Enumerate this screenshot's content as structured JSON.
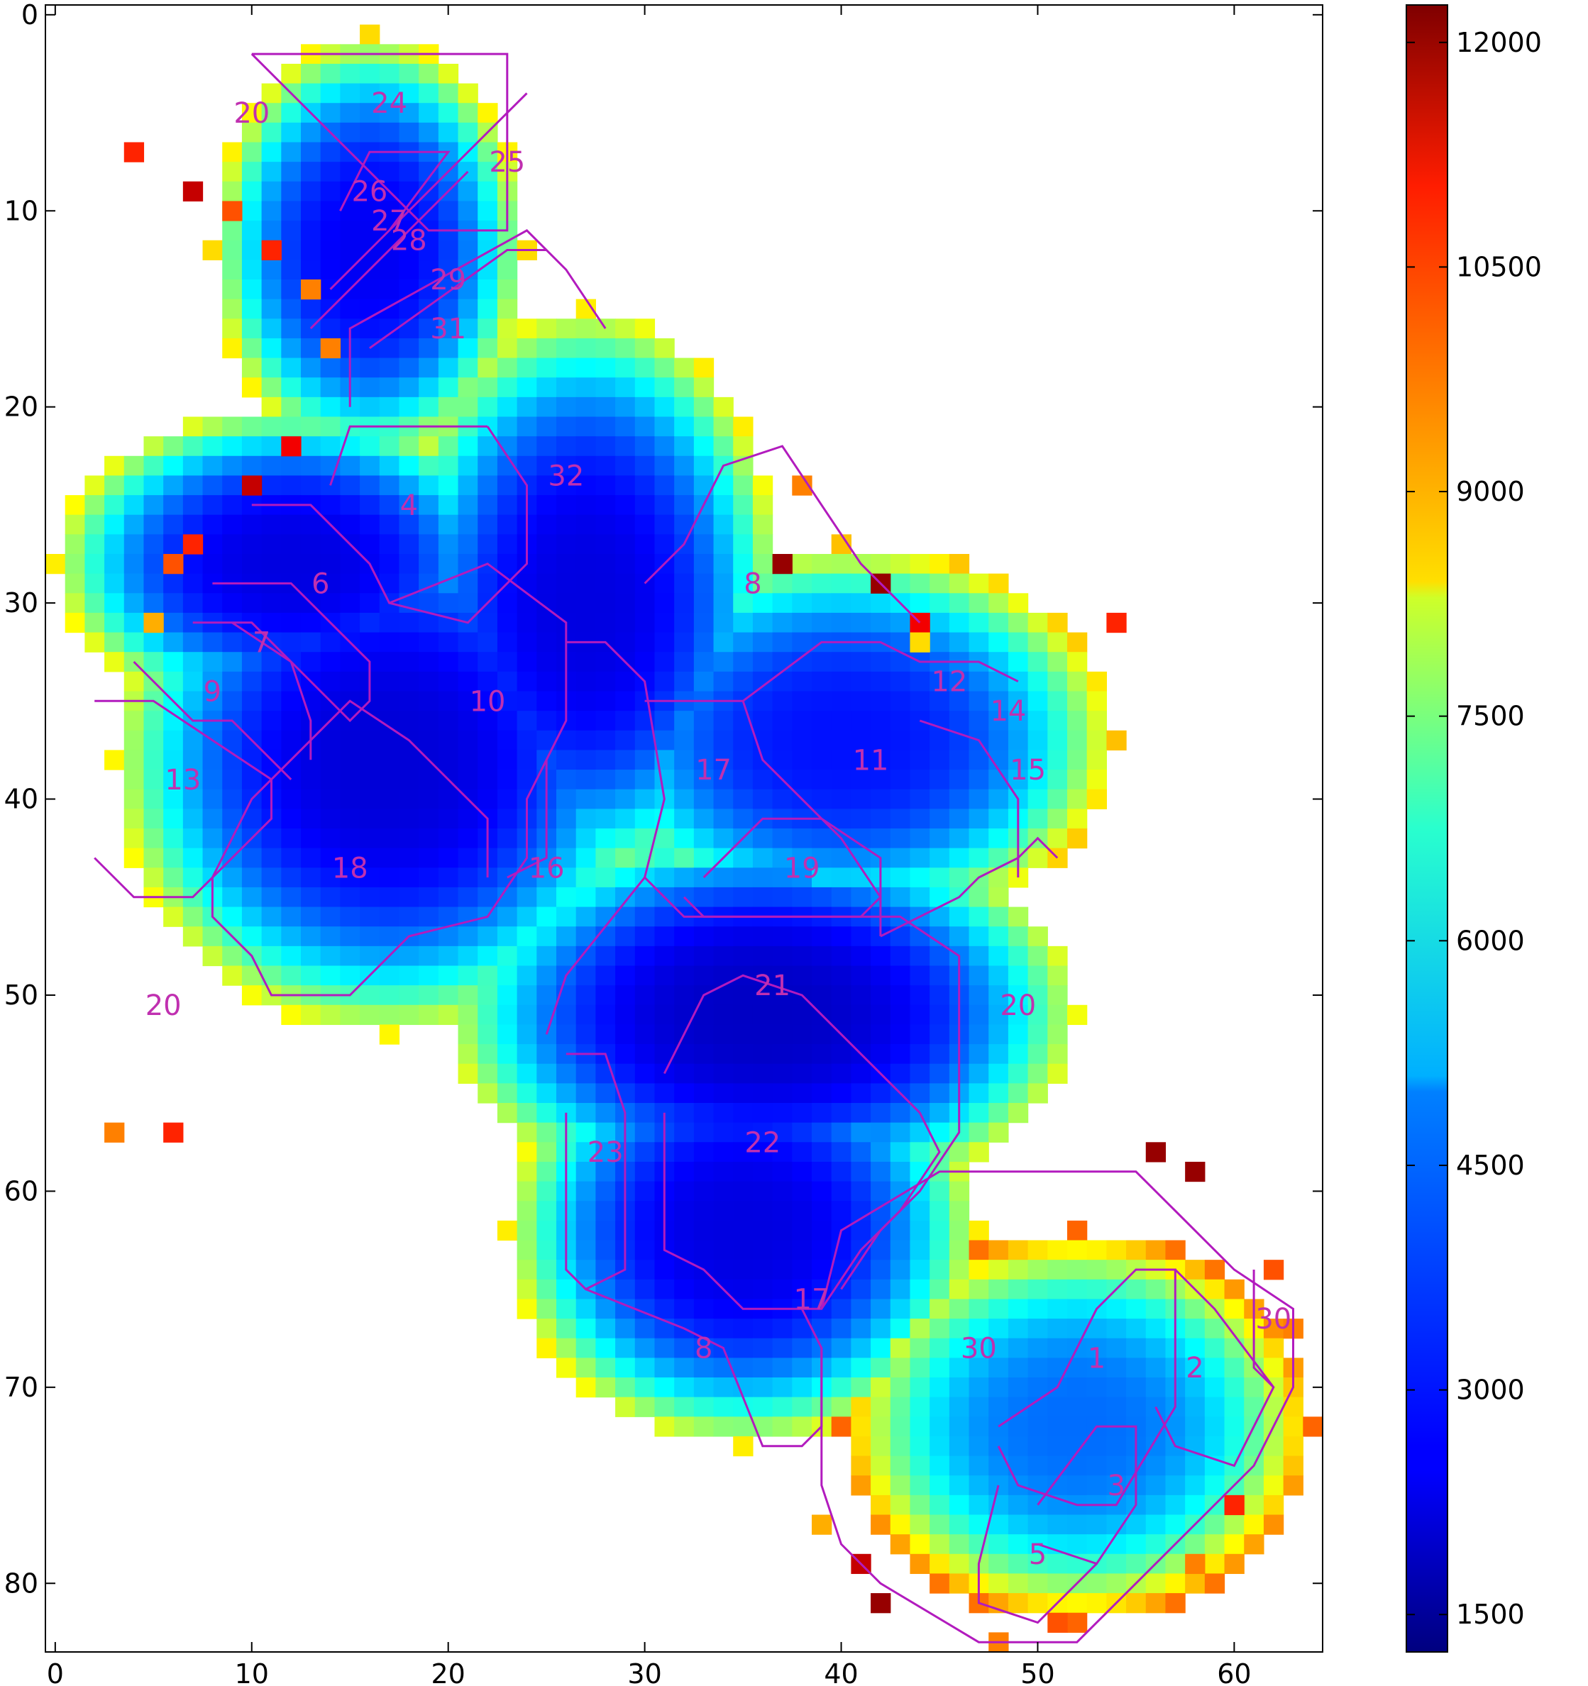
{
  "chart_data": {
    "type": "heatmap",
    "title": "",
    "xlabel": "",
    "ylabel": "",
    "xlim": [
      -0.5,
      64.5
    ],
    "ylim": [
      83.5,
      -0.5
    ],
    "x_ticks": [
      0,
      10,
      20,
      30,
      40,
      50,
      60
    ],
    "y_ticks": [
      0,
      10,
      20,
      30,
      40,
      50,
      60,
      70,
      80
    ],
    "colormap": "jet",
    "colorbar": {
      "min": 1250,
      "max": 12250,
      "ticks": [
        1500,
        3000,
        4500,
        6000,
        7500,
        9000,
        10500,
        12000
      ]
    },
    "grid": false,
    "outline_color": "#b21bbe",
    "label_color": "#c030b0",
    "mask_blobs": [
      {
        "cx": 16,
        "cy": 12,
        "rx": 8,
        "ry": 11,
        "value": 2500
      },
      {
        "cx": 12,
        "cy": 28,
        "rx": 12,
        "ry": 8,
        "value": 2300
      },
      {
        "cx": 17,
        "cy": 38,
        "rx": 14,
        "ry": 14,
        "value": 2200
      },
      {
        "cx": 27,
        "cy": 30,
        "rx": 10,
        "ry": 15,
        "value": 2300
      },
      {
        "cx": 40,
        "cy": 37,
        "rx": 14,
        "ry": 10,
        "value": 2800
      },
      {
        "cx": 36,
        "cy": 51,
        "rx": 16,
        "ry": 10,
        "value": 2000
      },
      {
        "cx": 35,
        "cy": 62,
        "rx": 12,
        "ry": 11,
        "value": 2300
      },
      {
        "cx": 52,
        "cy": 72,
        "rx": 12,
        "ry": 10,
        "value": 3800
      }
    ],
    "edge_points": [
      [
        4,
        7,
        10500
      ],
      [
        7,
        9,
        11500
      ],
      [
        9,
        10,
        10000
      ],
      [
        11,
        12,
        10500
      ],
      [
        13,
        14,
        9500
      ],
      [
        14,
        17,
        9500
      ],
      [
        12,
        22,
        11000
      ],
      [
        10,
        24,
        11500
      ],
      [
        7,
        27,
        10500
      ],
      [
        6,
        28,
        10000
      ],
      [
        5,
        31,
        9000
      ],
      [
        3,
        57,
        9500
      ],
      [
        6,
        57,
        10500
      ],
      [
        37,
        28,
        12000
      ],
      [
        42,
        29,
        12000
      ],
      [
        44,
        31,
        11000
      ],
      [
        54,
        31,
        10500
      ],
      [
        56,
        58,
        12000
      ],
      [
        58,
        59,
        12000
      ],
      [
        62,
        64,
        10000
      ],
      [
        63,
        67,
        9500
      ],
      [
        60,
        76,
        10500
      ],
      [
        58,
        79,
        9500
      ],
      [
        42,
        81,
        12000
      ],
      [
        41,
        79,
        11500
      ],
      [
        48,
        83,
        9500
      ],
      [
        51,
        82,
        10000
      ],
      [
        39,
        77,
        9000
      ],
      [
        44,
        32,
        8500
      ],
      [
        38,
        24,
        9500
      ]
    ],
    "cells_positions_note": "",
    "regions": [
      {
        "label": "20",
        "x": 10,
        "y": 5
      },
      {
        "label": "24",
        "x": 17,
        "y": 4.5
      },
      {
        "label": "25",
        "x": 23,
        "y": 7.5
      },
      {
        "label": "26",
        "x": 16,
        "y": 9
      },
      {
        "label": "27",
        "x": 17,
        "y": 10.5
      },
      {
        "label": "28",
        "x": 18,
        "y": 11.5
      },
      {
        "label": "29",
        "x": 20,
        "y": 13.5
      },
      {
        "label": "31",
        "x": 20,
        "y": 16
      },
      {
        "label": "32",
        "x": 26,
        "y": 23.5
      },
      {
        "label": "4",
        "x": 18,
        "y": 25
      },
      {
        "label": "6",
        "x": 13.5,
        "y": 29
      },
      {
        "label": "7",
        "x": 10.5,
        "y": 32
      },
      {
        "label": "8",
        "x": 35.5,
        "y": 29
      },
      {
        "label": "9",
        "x": 8,
        "y": 34.5
      },
      {
        "label": "10",
        "x": 22,
        "y": 35
      },
      {
        "label": "12",
        "x": 45.5,
        "y": 34
      },
      {
        "label": "14",
        "x": 48.5,
        "y": 35.5
      },
      {
        "label": "13",
        "x": 6.5,
        "y": 39
      },
      {
        "label": "17",
        "x": 33.5,
        "y": 38.5
      },
      {
        "label": "11",
        "x": 41.5,
        "y": 38
      },
      {
        "label": "15",
        "x": 49.5,
        "y": 38.5
      },
      {
        "label": "18",
        "x": 15,
        "y": 43.5
      },
      {
        "label": "16",
        "x": 25,
        "y": 43.5
      },
      {
        "label": "19",
        "x": 38,
        "y": 43.5
      },
      {
        "label": "21",
        "x": 36.5,
        "y": 49.5
      },
      {
        "label": "20",
        "x": 5.5,
        "y": 50.5
      },
      {
        "label": "20",
        "x": 49,
        "y": 50.5
      },
      {
        "label": "22",
        "x": 36,
        "y": 57.5
      },
      {
        "label": "23",
        "x": 28,
        "y": 58
      },
      {
        "label": "17",
        "x": 38.5,
        "y": 65.5
      },
      {
        "label": "8",
        "x": 33,
        "y": 68
      },
      {
        "label": "30",
        "x": 47,
        "y": 68
      },
      {
        "label": "1",
        "x": 53,
        "y": 68.5
      },
      {
        "label": "2",
        "x": 58,
        "y": 69
      },
      {
        "label": "30",
        "x": 62,
        "y": 66.5
      },
      {
        "label": "3",
        "x": 54,
        "y": 75
      },
      {
        "label": "5",
        "x": 50,
        "y": 78.5
      }
    ],
    "boundaries": [
      [
        [
          10,
          2
        ],
        [
          23,
          2
        ],
        [
          23,
          11
        ],
        [
          19,
          11
        ],
        [
          10,
          2
        ]
      ],
      [
        [
          24,
          4
        ],
        [
          16,
          12
        ],
        [
          14,
          14
        ]
      ],
      [
        [
          14.5,
          10
        ],
        [
          16,
          7
        ],
        [
          20,
          7
        ],
        [
          17,
          11
        ]
      ],
      [
        [
          13,
          16
        ],
        [
          21,
          8
        ]
      ],
      [
        [
          15,
          20
        ],
        [
          15,
          16
        ],
        [
          24,
          11
        ],
        [
          26,
          13
        ],
        [
          28,
          16
        ]
      ],
      [
        [
          16,
          17
        ],
        [
          23,
          12
        ],
        [
          25,
          12
        ]
      ],
      [
        [
          22,
          21
        ],
        [
          24,
          24
        ],
        [
          24,
          28
        ],
        [
          21,
          31
        ],
        [
          17,
          30
        ],
        [
          16,
          28
        ],
        [
          13,
          25
        ],
        [
          10,
          25
        ]
      ],
      [
        [
          14,
          24
        ],
        [
          15,
          21
        ],
        [
          22,
          21
        ]
      ],
      [
        [
          8,
          29
        ],
        [
          12,
          29
        ],
        [
          16,
          33
        ],
        [
          16,
          35
        ],
        [
          15,
          36
        ],
        [
          12,
          33
        ],
        [
          9,
          31
        ]
      ],
      [
        [
          7,
          31
        ],
        [
          10,
          31
        ],
        [
          12,
          33
        ],
        [
          13,
          36
        ],
        [
          13,
          38
        ]
      ],
      [
        [
          4,
          33
        ],
        [
          7,
          36
        ],
        [
          9,
          36
        ],
        [
          12,
          39
        ]
      ],
      [
        [
          2,
          35
        ],
        [
          5,
          35
        ],
        [
          8,
          37
        ],
        [
          11,
          39
        ],
        [
          11,
          41
        ],
        [
          7,
          45
        ],
        [
          4,
          45
        ],
        [
          2,
          43
        ]
      ],
      [
        [
          17,
          30
        ],
        [
          22,
          28
        ],
        [
          26,
          31
        ],
        [
          26,
          36
        ],
        [
          24,
          40
        ],
        [
          24,
          43
        ],
        [
          22,
          46
        ],
        [
          18,
          47
        ],
        [
          15,
          50
        ],
        [
          11,
          50
        ],
        [
          10,
          48
        ],
        [
          8,
          46
        ],
        [
          8,
          44
        ],
        [
          10,
          40
        ],
        [
          15,
          35
        ],
        [
          18,
          37
        ],
        [
          22,
          41
        ],
        [
          22,
          44
        ]
      ],
      [
        [
          26,
          32
        ],
        [
          28,
          32
        ],
        [
          30,
          34
        ],
        [
          31,
          40
        ],
        [
          30,
          44
        ],
        [
          26,
          49
        ],
        [
          25,
          52
        ]
      ],
      [
        [
          23,
          44
        ],
        [
          25,
          43
        ],
        [
          25,
          38
        ]
      ],
      [
        [
          30,
          29
        ],
        [
          32,
          27
        ],
        [
          34,
          23
        ],
        [
          37,
          22
        ],
        [
          39,
          25
        ],
        [
          41,
          28
        ],
        [
          43,
          30
        ],
        [
          44,
          31
        ]
      ],
      [
        [
          30,
          35
        ],
        [
          35,
          35
        ],
        [
          39,
          32
        ],
        [
          42,
          32
        ],
        [
          44,
          33
        ],
        [
          47,
          33
        ],
        [
          49,
          34
        ]
      ],
      [
        [
          35,
          35
        ],
        [
          36,
          38
        ],
        [
          40,
          42
        ],
        [
          42,
          45
        ],
        [
          42,
          47
        ]
      ],
      [
        [
          33,
          44
        ],
        [
          36,
          41
        ],
        [
          39,
          41
        ],
        [
          42,
          43
        ],
        [
          42,
          45
        ],
        [
          41,
          46
        ],
        [
          33,
          46
        ],
        [
          32,
          45
        ]
      ],
      [
        [
          30,
          44
        ],
        [
          32,
          46
        ],
        [
          43,
          46
        ],
        [
          46,
          48
        ],
        [
          46,
          57
        ],
        [
          44,
          60
        ],
        [
          42,
          62
        ],
        [
          40,
          65
        ]
      ],
      [
        [
          42,
          47
        ],
        [
          46,
          45
        ],
        [
          47,
          44
        ],
        [
          49,
          43
        ],
        [
          50,
          42
        ],
        [
          51,
          43
        ]
      ],
      [
        [
          44,
          36
        ],
        [
          47,
          37
        ],
        [
          49,
          40
        ],
        [
          49,
          44
        ]
      ],
      [
        [
          31,
          54
        ],
        [
          33,
          50
        ],
        [
          35,
          49
        ],
        [
          38,
          50
        ],
        [
          44,
          56
        ],
        [
          45,
          58
        ],
        [
          43,
          61
        ],
        [
          41,
          63
        ],
        [
          39,
          66
        ],
        [
          37,
          66
        ],
        [
          35,
          66
        ],
        [
          33,
          64
        ],
        [
          31,
          63
        ],
        [
          31,
          56
        ]
      ],
      [
        [
          26,
          53
        ],
        [
          28,
          53
        ],
        [
          29,
          56
        ],
        [
          29,
          64
        ],
        [
          27,
          65
        ],
        [
          26,
          64
        ],
        [
          26,
          56
        ]
      ],
      [
        [
          27,
          65
        ],
        [
          32,
          67
        ],
        [
          34,
          68
        ],
        [
          36,
          73
        ],
        [
          38,
          73
        ],
        [
          39,
          72
        ],
        [
          39,
          68
        ],
        [
          38,
          66
        ]
      ],
      [
        [
          39,
          66
        ],
        [
          40,
          62
        ],
        [
          45,
          59
        ],
        [
          55,
          59
        ],
        [
          57,
          61
        ],
        [
          60,
          64
        ],
        [
          63,
          66
        ],
        [
          63,
          70
        ],
        [
          61,
          74
        ],
        [
          58,
          77
        ],
        [
          55,
          80
        ],
        [
          52,
          83
        ],
        [
          47,
          83
        ],
        [
          42,
          80
        ],
        [
          40,
          78
        ],
        [
          39,
          75
        ],
        [
          39,
          68
        ]
      ],
      [
        [
          48,
          72
        ],
        [
          51,
          70
        ],
        [
          53,
          66
        ],
        [
          55,
          64
        ],
        [
          57,
          64
        ],
        [
          57,
          71
        ],
        [
          54,
          76
        ],
        [
          52,
          76
        ],
        [
          49,
          75
        ],
        [
          48,
          73
        ]
      ],
      [
        [
          57,
          64
        ],
        [
          59,
          66
        ],
        [
          62,
          70
        ],
        [
          60,
          74
        ],
        [
          57,
          73
        ],
        [
          56,
          71
        ]
      ],
      [
        [
          50,
          76
        ],
        [
          53,
          72
        ],
        [
          55,
          72
        ],
        [
          55,
          76
        ],
        [
          53,
          79
        ],
        [
          50,
          78
        ]
      ],
      [
        [
          48,
          75
        ],
        [
          47,
          79
        ],
        [
          47,
          81
        ],
        [
          50,
          82
        ],
        [
          52,
          80
        ],
        [
          53,
          79
        ]
      ],
      [
        [
          61,
          64
        ],
        [
          61,
          69
        ],
        [
          62,
          70
        ]
      ]
    ]
  }
}
